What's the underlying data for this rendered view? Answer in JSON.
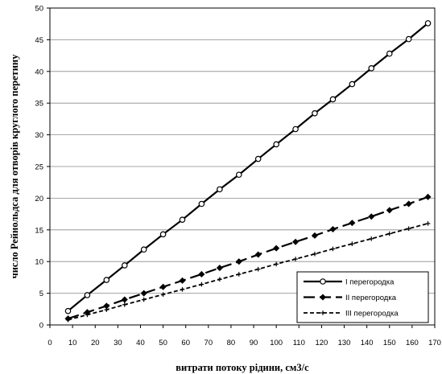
{
  "chart_data": {
    "type": "line",
    "xlabel": "витрати потоку рідини, см3/с",
    "ylabel": "число Рейнольдса для отворів круглого перетину",
    "xlim": [
      0,
      170
    ],
    "ylim": [
      0,
      50
    ],
    "xticks": [
      0,
      10,
      20,
      30,
      40,
      50,
      60,
      70,
      80,
      90,
      100,
      110,
      120,
      130,
      140,
      150,
      160,
      170
    ],
    "yticks": [
      0,
      5,
      10,
      15,
      20,
      25,
      30,
      35,
      40,
      45,
      50
    ],
    "grid": true,
    "legend_position": "bottom-right",
    "series": [
      {
        "name": "I перегородка",
        "style": "solid",
        "marker": "circle",
        "color": "#000000",
        "x": [
          8,
          16.5,
          25,
          33,
          41.5,
          50,
          58.5,
          67,
          75,
          83.5,
          92,
          100,
          108.5,
          117,
          125,
          133.5,
          142,
          150,
          158.5,
          167
        ],
        "y": [
          2.2,
          4.7,
          7.1,
          9.4,
          11.9,
          14.3,
          16.6,
          19.1,
          21.4,
          23.7,
          26.2,
          28.5,
          30.9,
          33.4,
          35.6,
          38.0,
          40.5,
          42.8,
          45.1,
          47.6
        ]
      },
      {
        "name": "II перегородка",
        "style": "dash",
        "marker": "diamond",
        "color": "#000000",
        "x": [
          8,
          16.5,
          25,
          33,
          41.5,
          50,
          58.5,
          67,
          75,
          83.5,
          92,
          100,
          108.5,
          117,
          125,
          133.5,
          142,
          150,
          158.5,
          167
        ],
        "y": [
          1.0,
          2.0,
          3.0,
          4.0,
          5.0,
          6.0,
          7.0,
          8.0,
          9.0,
          10.0,
          11.1,
          12.1,
          13.1,
          14.1,
          15.1,
          16.1,
          17.1,
          18.1,
          19.1,
          20.2
        ]
      },
      {
        "name": "III перегородка",
        "style": "short-dash",
        "marker": "plus",
        "color": "#000000",
        "x": [
          8,
          16.5,
          25,
          33,
          41.5,
          50,
          58.5,
          67,
          75,
          83.5,
          92,
          100,
          108.5,
          117,
          125,
          133.5,
          142,
          150,
          158.5,
          167
        ],
        "y": [
          0.8,
          1.6,
          2.4,
          3.2,
          4.0,
          4.8,
          5.6,
          6.4,
          7.2,
          8.0,
          8.8,
          9.6,
          10.4,
          11.2,
          12.0,
          12.8,
          13.6,
          14.4,
          15.2,
          16.0
        ]
      }
    ]
  }
}
